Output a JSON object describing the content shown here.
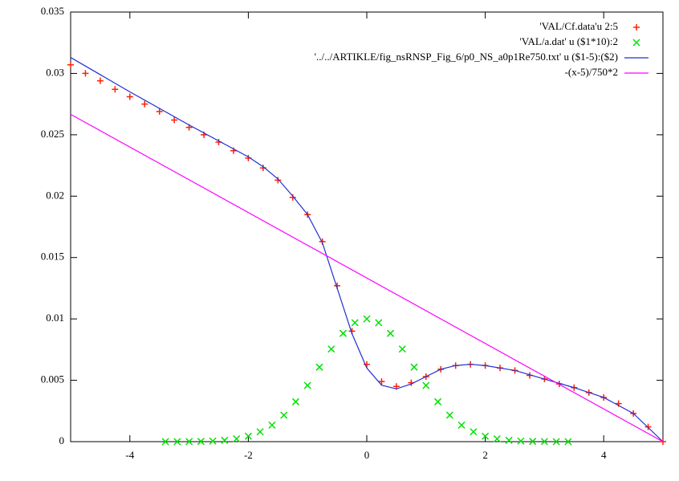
{
  "chart_data": {
    "type": "line",
    "xlim": [
      -5,
      5
    ],
    "xticks": [
      -4,
      -2,
      0,
      2,
      4
    ],
    "ylim": [
      0,
      0.035
    ],
    "yticks": [
      0,
      0.005,
      0.01,
      0.015,
      0.02,
      0.025,
      0.03,
      0.035
    ],
    "legend": "top-right",
    "series": [
      {
        "name": "'VAL/Cf.data'u 2:5",
        "color": "#ff2000",
        "marker": "plus",
        "x": [
          -5,
          -4.75,
          -4.5,
          -4.25,
          -4,
          -3.75,
          -3.5,
          -3.25,
          -3,
          -2.75,
          -2.5,
          -2.25,
          -2,
          -1.75,
          -1.5,
          -1.25,
          -1,
          -0.75,
          -0.5,
          -0.25,
          0,
          0.25,
          0.5,
          0.75,
          1,
          1.25,
          1.5,
          1.75,
          2,
          2.25,
          2.5,
          2.75,
          3,
          3.25,
          3.5,
          3.75,
          4,
          4.25,
          4.5,
          4.75,
          5
        ],
        "values": [
          0.0307,
          0.03,
          0.0294,
          0.0287,
          0.0281,
          0.0275,
          0.0269,
          0.0262,
          0.0256,
          0.025,
          0.0244,
          0.0237,
          0.0231,
          0.0223,
          0.0213,
          0.0199,
          0.0185,
          0.0163,
          0.0127,
          0.009,
          0.0063,
          0.0049,
          0.0045,
          0.0048,
          0.0053,
          0.0059,
          0.0062,
          0.0063,
          0.0062,
          0.006,
          0.0058,
          0.0054,
          0.0051,
          0.0047,
          0.0044,
          0.004,
          0.0036,
          0.0031,
          0.0023,
          0.0012,
          0
        ]
      },
      {
        "name": "'VAL/a.dat' u ($1*10):2",
        "color": "#00e000",
        "marker": "cross",
        "x": [
          -3.4,
          -3.2,
          -3,
          -2.8,
          -2.6,
          -2.4,
          -2.2,
          -2,
          -1.8,
          -1.6,
          -1.4,
          -1.2,
          -1,
          -0.8,
          -0.6,
          -0.4,
          -0.2,
          0,
          0.2,
          0.4,
          0.6,
          0.8,
          1,
          1.2,
          1.4,
          1.6,
          1.8,
          2,
          2.2,
          2.4,
          2.6,
          2.8,
          3,
          3.2,
          3.4
        ],
        "values": [
          0,
          0,
          1e-05,
          2e-05,
          5e-05,
          0.00011,
          0.00023,
          0.00044,
          0.0008,
          0.00135,
          0.00216,
          0.00325,
          0.00458,
          0.00607,
          0.00755,
          0.00882,
          0.00969,
          0.01,
          0.00969,
          0.00882,
          0.00755,
          0.00607,
          0.00458,
          0.00325,
          0.00216,
          0.00135,
          0.0008,
          0.00044,
          0.00023,
          0.00011,
          5e-05,
          2e-05,
          1e-05,
          0,
          0
        ]
      },
      {
        "name": "'../../ARTIKLE/fig_nsRNSP_Fig_6/p0_NS_a0p1Re750.txt' u ($1-5):($2)",
        "color": "#2030d0",
        "marker": "none",
        "x": [
          -5,
          -4,
          -3,
          -2,
          -1.75,
          -1.5,
          -1.25,
          -1,
          -0.75,
          -0.5,
          -0.25,
          0,
          0.25,
          0.5,
          0.75,
          1,
          1.25,
          1.5,
          1.75,
          2,
          2.5,
          3,
          3.5,
          4,
          4.5,
          5
        ],
        "values": [
          0.0313,
          0.0285,
          0.0258,
          0.0232,
          0.0224,
          0.0214,
          0.02,
          0.0185,
          0.0162,
          0.0125,
          0.0088,
          0.006,
          0.0046,
          0.0043,
          0.0047,
          0.0053,
          0.0059,
          0.0062,
          0.0063,
          0.0062,
          0.0058,
          0.0051,
          0.0044,
          0.0036,
          0.0023,
          0
        ]
      },
      {
        "name": "-(x-5)/750*2",
        "color": "#ff00ff",
        "marker": "none",
        "x": [
          -5,
          5
        ],
        "values": [
          0.026667,
          0
        ]
      }
    ]
  }
}
